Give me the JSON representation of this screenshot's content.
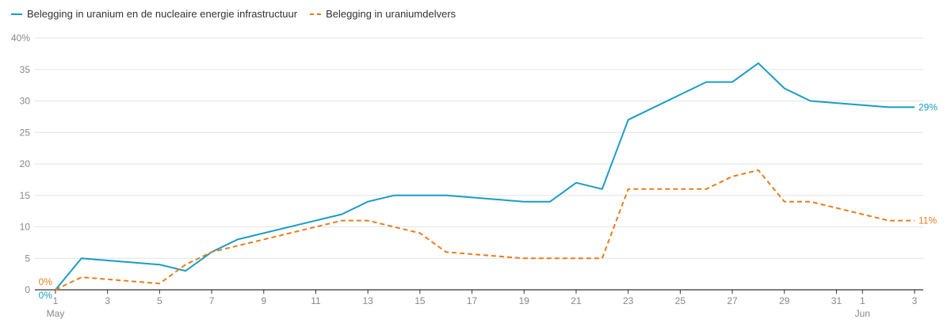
{
  "chart_data": {
    "type": "line",
    "legend_position": "top-left",
    "grid": true,
    "ylim": [
      0,
      40
    ],
    "y_ticks": [
      "0",
      "5",
      "10",
      "15",
      "20",
      "25",
      "30",
      "35",
      "40%"
    ],
    "x_ticks": [
      {
        "day": 1,
        "label": "1",
        "sublabel": "May"
      },
      {
        "day": 3,
        "label": "3"
      },
      {
        "day": 5,
        "label": "5"
      },
      {
        "day": 7,
        "label": "7"
      },
      {
        "day": 9,
        "label": "9"
      },
      {
        "day": 11,
        "label": "11"
      },
      {
        "day": 13,
        "label": "13"
      },
      {
        "day": 15,
        "label": "15"
      },
      {
        "day": 17,
        "label": "17"
      },
      {
        "day": 19,
        "label": "19"
      },
      {
        "day": 21,
        "label": "21"
      },
      {
        "day": 23,
        "label": "23"
      },
      {
        "day": 25,
        "label": "25"
      },
      {
        "day": 27,
        "label": "27"
      },
      {
        "day": 29,
        "label": "29"
      },
      {
        "day": 31,
        "label": "31"
      },
      {
        "day": 32,
        "label": "1",
        "sublabel": "Jun"
      },
      {
        "day": 34,
        "label": "3"
      }
    ],
    "x_domain": [
      1,
      34
    ],
    "series": [
      {
        "name": "Belegging in uranium en de nucleaire energie infrastructuur",
        "color": "#1a9cc6",
        "dash": false,
        "start_label": "0%",
        "end_label": "29%",
        "points": [
          [
            1,
            0
          ],
          [
            2,
            5
          ],
          [
            5,
            4
          ],
          [
            6,
            3
          ],
          [
            7,
            6
          ],
          [
            8,
            8
          ],
          [
            12,
            12
          ],
          [
            13,
            14
          ],
          [
            14,
            15
          ],
          [
            16,
            15
          ],
          [
            19,
            14
          ],
          [
            20,
            14
          ],
          [
            21,
            17
          ],
          [
            22,
            16
          ],
          [
            23,
            27
          ],
          [
            26,
            33
          ],
          [
            27,
            33
          ],
          [
            28,
            36
          ],
          [
            29,
            32
          ],
          [
            30,
            30
          ],
          [
            33,
            29
          ],
          [
            34,
            29
          ]
        ]
      },
      {
        "name": "Belegging in uraniumdelvers",
        "color": "#e97d1c",
        "dash": true,
        "start_label": "0%",
        "end_label": "11%",
        "points": [
          [
            1,
            0
          ],
          [
            2,
            2
          ],
          [
            5,
            1
          ],
          [
            6,
            4
          ],
          [
            7,
            6
          ],
          [
            12,
            11
          ],
          [
            13,
            11
          ],
          [
            15,
            9
          ],
          [
            16,
            6
          ],
          [
            19,
            5
          ],
          [
            22,
            5
          ],
          [
            23,
            16
          ],
          [
            26,
            16
          ],
          [
            27,
            18
          ],
          [
            28,
            19
          ],
          [
            29,
            14
          ],
          [
            30,
            14
          ],
          [
            33,
            11
          ],
          [
            34,
            11
          ]
        ]
      }
    ]
  }
}
